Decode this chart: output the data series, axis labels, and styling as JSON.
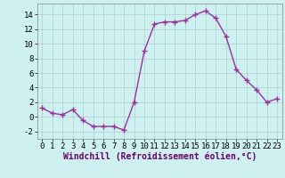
{
  "x": [
    0,
    1,
    2,
    3,
    4,
    5,
    6,
    7,
    8,
    9,
    10,
    11,
    12,
    13,
    14,
    15,
    16,
    17,
    18,
    19,
    20,
    21,
    22,
    23
  ],
  "y": [
    1.2,
    0.5,
    0.3,
    1.0,
    -0.5,
    -1.3,
    -1.3,
    -1.3,
    -1.8,
    2.0,
    9.0,
    12.7,
    13.0,
    13.0,
    13.2,
    14.0,
    14.5,
    13.5,
    11.0,
    6.5,
    5.0,
    3.7,
    2.0,
    2.5
  ],
  "line_color": "#993399",
  "marker": "+",
  "marker_size": 4,
  "line_width": 1.0,
  "bg_color": "#cff0f0",
  "grid_color": "#aacfcf",
  "xlabel": "Windchill (Refroidissement éolien,°C)",
  "xlabel_fontsize": 7,
  "tick_fontsize": 6.5,
  "xlim": [
    -0.5,
    23.5
  ],
  "ylim": [
    -3.0,
    15.5
  ],
  "yticks": [
    -2,
    0,
    2,
    4,
    6,
    8,
    10,
    12,
    14
  ],
  "xticks": [
    0,
    1,
    2,
    3,
    4,
    5,
    6,
    7,
    8,
    9,
    10,
    11,
    12,
    13,
    14,
    15,
    16,
    17,
    18,
    19,
    20,
    21,
    22,
    23
  ]
}
